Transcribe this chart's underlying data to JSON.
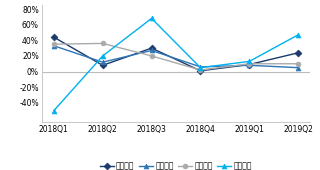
{
  "x_labels": [
    "2018Q1",
    "2018Q2",
    "2018Q3",
    "2018Q4",
    "2019Q1",
    "2019Q2"
  ],
  "series": {
    "顾家家居": [
      0.44,
      0.08,
      0.3,
      0.01,
      0.09,
      0.24
    ],
    "美克家居": [
      0.33,
      0.12,
      0.27,
      0.06,
      0.08,
      0.05
    ],
    "大亚圣象": [
      0.35,
      0.36,
      0.2,
      0.02,
      0.1,
      0.1
    ],
    "江山欧派": [
      -0.5,
      0.2,
      0.68,
      0.05,
      0.13,
      0.47
    ]
  },
  "colors": {
    "顾家家居": "#1A3A6B",
    "美克家居": "#2E75B6",
    "大亚圣象": "#AAAAAA",
    "江山欧派": "#00B0F0"
  },
  "markers": {
    "顾家家居": "D",
    "美克家居": "^",
    "大亚圣象": "o",
    "江山欧派": "^"
  },
  "ylim": [
    -0.65,
    0.85
  ],
  "yticks": [
    -0.4,
    -0.2,
    0.0,
    0.2,
    0.4,
    0.6,
    0.8
  ],
  "ytick_labels": [
    "-40%",
    "-20%",
    "0%",
    "20%",
    "40%",
    "60%",
    "80%"
  ],
  "legend_labels": [
    "顾家家居",
    "美克家居",
    "大亚圣象",
    "江山欧派"
  ],
  "background_color": "#FFFFFF",
  "zero_line_color": "#BBBBBB",
  "spine_color": "#CCCCCC",
  "line_width": 1.0,
  "marker_size": 3.5,
  "tick_fontsize": 5.5,
  "legend_fontsize": 5.5
}
